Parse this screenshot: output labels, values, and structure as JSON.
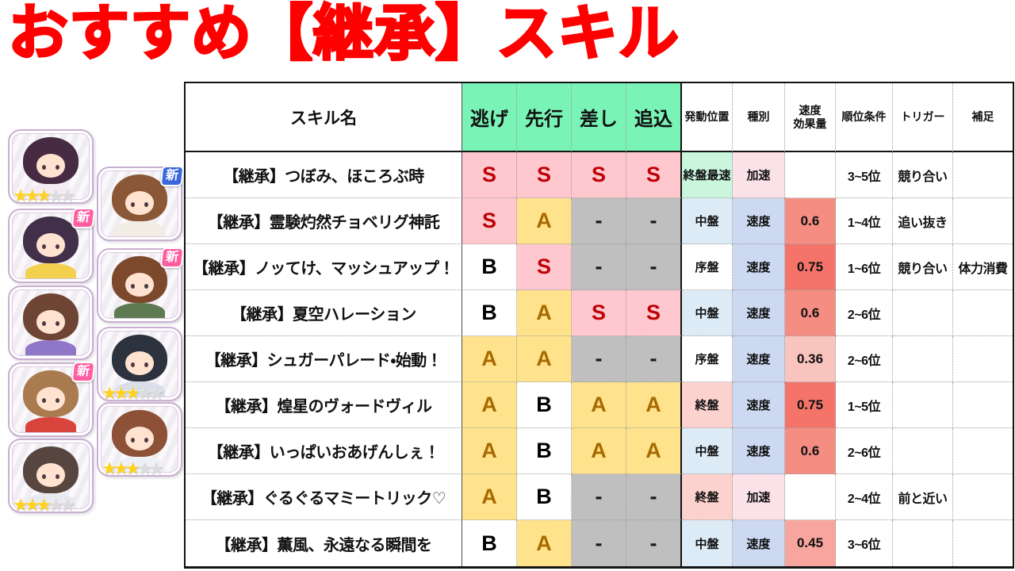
{
  "title": {
    "text": "おすすめ【継承】スキル",
    "color": "#FF0000"
  },
  "sidebar": {
    "new_badge_label": "新",
    "badge_colors": {
      "pink": "#FF5FA2",
      "blue": "#3A67DC"
    },
    "star_filled_color": "#FFD21E",
    "star_empty_color": "#DCDCDC",
    "portraits": [
      {
        "id": "purple-bob-girl",
        "column": 1,
        "badge": null,
        "stars": 3,
        "hair": "#472B43",
        "outfit": "#F4EBF3"
      },
      {
        "id": "festival-wink-girl",
        "column": 1,
        "badge": "pink",
        "stars": 0,
        "hair": "#42304A",
        "outfit": "#F3D04E"
      },
      {
        "id": "ponytail-idol-girl",
        "column": 1,
        "badge": null,
        "stars": 0,
        "hair": "#6E4434",
        "outfit": "#8F76C6"
      },
      {
        "id": "maid-headband-girl",
        "column": 1,
        "badge": "pink",
        "stars": 0,
        "hair": "#A97B4F",
        "outfit": "#D8433C"
      },
      {
        "id": "gray-hair-girl",
        "column": 1,
        "badge": null,
        "stars": 3,
        "hair": "#57463F",
        "outfit": "#E9E9F0"
      },
      {
        "id": "long-brown-hair-girl",
        "column": 2,
        "badge": "blue",
        "stars": 0,
        "hair": "#8A5836",
        "outfit": "#F1EDE4"
      },
      {
        "id": "messy-brown-hair-girl",
        "column": 2,
        "badge": "pink",
        "stars": 0,
        "hair": "#7C492C",
        "outfit": "#5E7A52"
      },
      {
        "id": "black-hair-girl",
        "column": 2,
        "badge": null,
        "stars": 3,
        "hair": "#2C323E",
        "outfit": "#DADEE9"
      },
      {
        "id": "head-wrap-girl",
        "column": 2,
        "badge": null,
        "stars": 3,
        "hair": "#8C5137",
        "outfit": "#EFEFF7"
      }
    ]
  },
  "palette": {
    "header_green": "#79F3B6",
    "grades": {
      "S": {
        "bg": "#FFC7CE",
        "fg": "#BE0007"
      },
      "A": {
        "bg": "#FFE38C",
        "fg": "#A86A00"
      },
      "B": {
        "bg": "#FFFFFF",
        "fg": "#000000"
      },
      "-": {
        "bg": "#BFBFBF",
        "fg": "#1A1A1A"
      }
    },
    "cells": {
      "mint": "#C9F6DD",
      "pink": "#FBE1E8",
      "blue_light": "#DDEBF7",
      "blue": "#CCD9F1",
      "salmon": "#FBD2CE",
      "white": "#FFFFFF",
      "red075": "#F4746A",
      "red06": "#F58D83",
      "red045": "#F7A59D",
      "red036": "#FAC4BE"
    }
  },
  "table": {
    "headers": {
      "skill_name": "スキル名",
      "styles": [
        "逃げ",
        "先行",
        "差し",
        "追込"
      ],
      "position": "発動位置",
      "kind": "種別",
      "effect_line1": "速度",
      "effect_line2": "効果量",
      "rank": "順位条件",
      "trigger": "トリガー",
      "note": "補足"
    },
    "rows": [
      {
        "name": "【継承】つぼみ、ほころぶ時",
        "grades": [
          "S",
          "S",
          "S",
          "S"
        ],
        "position": "終盤最速",
        "position_bg": "mint",
        "kind": "加速",
        "kind_bg": "pink",
        "effect": "",
        "effect_bg": "white",
        "rank": "3~5位",
        "trigger": "競り合い",
        "note": ""
      },
      {
        "name": "【継承】霊験灼然チョベリグ神託",
        "grades": [
          "S",
          "A",
          "-",
          "-"
        ],
        "position": "中盤",
        "position_bg": "blue_light",
        "kind": "速度",
        "kind_bg": "blue",
        "effect": "0.6",
        "effect_bg": "red06",
        "rank": "1~4位",
        "trigger": "追い抜き",
        "note": ""
      },
      {
        "name": "【継承】ノッてけ、マッシュアップ！",
        "grades": [
          "B",
          "S",
          "-",
          "-"
        ],
        "position": "序盤",
        "position_bg": "white",
        "kind": "速度",
        "kind_bg": "blue",
        "effect": "0.75",
        "effect_bg": "red075",
        "rank": "1~6位",
        "trigger": "競り合い",
        "note": "体力消費"
      },
      {
        "name": "【継承】夏空ハレーション",
        "grades": [
          "B",
          "A",
          "S",
          "S"
        ],
        "position": "中盤",
        "position_bg": "blue_light",
        "kind": "速度",
        "kind_bg": "blue",
        "effect": "0.6",
        "effect_bg": "red06",
        "rank": "2~6位",
        "trigger": "",
        "note": ""
      },
      {
        "name": "【継承】シュガーパレード・始動！",
        "grades": [
          "A",
          "A",
          "-",
          "-"
        ],
        "position": "序盤",
        "position_bg": "white",
        "kind": "速度",
        "kind_bg": "blue",
        "effect": "0.36",
        "effect_bg": "red036",
        "rank": "2~6位",
        "trigger": "",
        "note": ""
      },
      {
        "name": "【継承】煌星のヴォードヴィル",
        "grades": [
          "A",
          "B",
          "A",
          "A"
        ],
        "position": "終盤",
        "position_bg": "salmon",
        "kind": "速度",
        "kind_bg": "blue",
        "effect": "0.75",
        "effect_bg": "red075",
        "rank": "1~5位",
        "trigger": "",
        "note": ""
      },
      {
        "name": "【継承】いっぱいおあげんしぇ！",
        "grades": [
          "A",
          "B",
          "A",
          "A"
        ],
        "position": "中盤",
        "position_bg": "blue_light",
        "kind": "速度",
        "kind_bg": "blue",
        "effect": "0.6",
        "effect_bg": "red06",
        "rank": "2~6位",
        "trigger": "",
        "note": ""
      },
      {
        "name": "【継承】ぐるぐるマミートリック♡",
        "grades": [
          "A",
          "B",
          "-",
          "-"
        ],
        "position": "終盤",
        "position_bg": "salmon",
        "kind": "加速",
        "kind_bg": "pink",
        "effect": "",
        "effect_bg": "white",
        "rank": "2~4位",
        "trigger": "前と近い",
        "note": ""
      },
      {
        "name": "【継承】薫風、永遠なる瞬間を",
        "grades": [
          "B",
          "A",
          "-",
          "-"
        ],
        "position": "中盤",
        "position_bg": "blue_light",
        "kind": "速度",
        "kind_bg": "blue",
        "effect": "0.45",
        "effect_bg": "red045",
        "rank": "3~6位",
        "trigger": "",
        "note": ""
      }
    ]
  }
}
